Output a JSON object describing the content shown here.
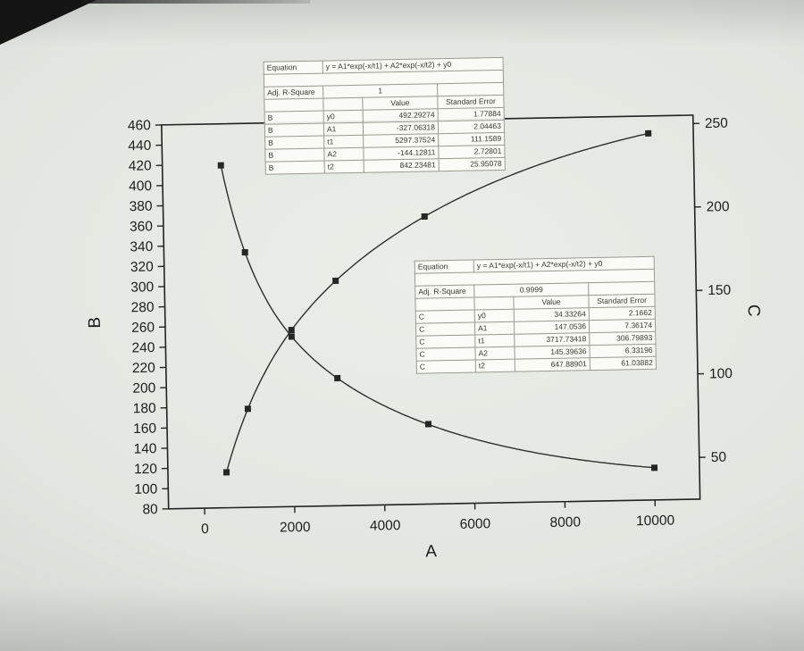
{
  "chart_data": {
    "type": "line",
    "title": "",
    "xlabel": "A",
    "ylabel_left": "B",
    "ylabel_right": "C",
    "xlim": [
      -800,
      11000
    ],
    "xticks": [
      0,
      2000,
      4000,
      6000,
      8000,
      10000
    ],
    "ylim_left": [
      80,
      460
    ],
    "yticks_left": [
      80,
      100,
      120,
      140,
      160,
      180,
      200,
      220,
      240,
      260,
      280,
      300,
      320,
      340,
      360,
      380,
      400,
      420,
      440,
      460
    ],
    "ylim_right": [
      25,
      255
    ],
    "yticks_right": [
      50,
      100,
      150,
      200,
      250
    ],
    "grid": false,
    "legend": "none",
    "series": [
      {
        "name": "B",
        "axis": "left",
        "marker": "square",
        "color": "#2e2e2e",
        "marker_color": "#262626",
        "points": [
          [
            500,
            115.1
          ],
          [
            1000,
            177.5
          ],
          [
            2000,
            254.7
          ],
          [
            3000,
            302.6
          ],
          [
            5000,
            364.6
          ],
          [
            10000,
            442.8
          ]
        ],
        "fit": {
          "y0": 492.29274,
          "A1": -327.06318,
          "t1": 5297.37524,
          "A2": -144.12811,
          "t2": 842.23481
        }
      },
      {
        "name": "C",
        "axis": "right",
        "marker": "square",
        "color": "#2e2e2e",
        "marker_color": "#262626",
        "points": [
          [
            500,
            230.1
          ],
          [
            1000,
            177.8
          ],
          [
            2000,
            126.8
          ],
          [
            3000,
            101.4
          ],
          [
            5000,
            72.9
          ],
          [
            10000,
            44.3
          ]
        ],
        "fit": {
          "y0": 34.33264,
          "A1": 147.0536,
          "t1": 3717.73418,
          "A2": 145.39636,
          "t2": 647.88901
        }
      }
    ]
  },
  "fit_tables": [
    {
      "equation_label": "Equation",
      "equation": "y = A1*exp(-x/t1) + A2*exp(-x/t2) + y0",
      "rsq_label": "Adj. R-Square",
      "rsq": "1",
      "col_headers": [
        "Value",
        "Standard Error"
      ],
      "rows": [
        [
          "B",
          "y0",
          "492.29274",
          "1.77884"
        ],
        [
          "B",
          "A1",
          "-327.06318",
          "2.04463"
        ],
        [
          "B",
          "t1",
          "5297.37524",
          "111.1589"
        ],
        [
          "B",
          "A2",
          "-144.12811",
          "2.72801"
        ],
        [
          "B",
          "t2",
          "842.23481",
          "25.95078"
        ]
      ]
    },
    {
      "equation_label": "Equation",
      "equation": "y = A1*exp(-x/t1) + A2*exp(-x/t2) + y0",
      "rsq_label": "Adj. R-Square",
      "rsq": "0.9999",
      "col_headers": [
        "Value",
        "Standard Error"
      ],
      "rows": [
        [
          "C",
          "y0",
          "34.33264",
          "2.1662"
        ],
        [
          "C",
          "A1",
          "147.0536",
          "7.36174"
        ],
        [
          "C",
          "t1",
          "3717.73418",
          "306.79893"
        ],
        [
          "C",
          "A2",
          "145.39636",
          "6.33196"
        ],
        [
          "C",
          "t2",
          "647.88901",
          "61.03882"
        ]
      ]
    }
  ]
}
